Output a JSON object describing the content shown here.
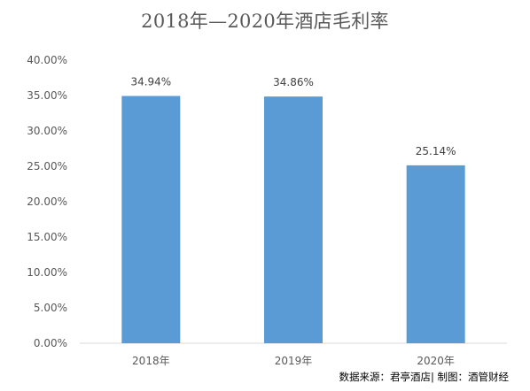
{
  "chart_data": {
    "type": "bar",
    "title": "2018年—2020年酒店毛利率",
    "categories": [
      "2018年",
      "2019年",
      "2020年"
    ],
    "values": [
      34.94,
      34.86,
      25.14
    ],
    "data_labels": [
      "34.94%",
      "34.86%",
      "25.14%"
    ],
    "ylim": [
      0,
      40
    ],
    "yticks": [
      "0.00%",
      "5.00%",
      "10.00%",
      "15.00%",
      "20.00%",
      "25.00%",
      "30.00%",
      "35.00%",
      "40.00%"
    ],
    "xlabel": "",
    "ylabel": "",
    "grid": false,
    "bar_color": "#5b9bd5"
  },
  "footer": {
    "source_note": "数据来源：君亭酒店| 制图：酒管财经"
  }
}
